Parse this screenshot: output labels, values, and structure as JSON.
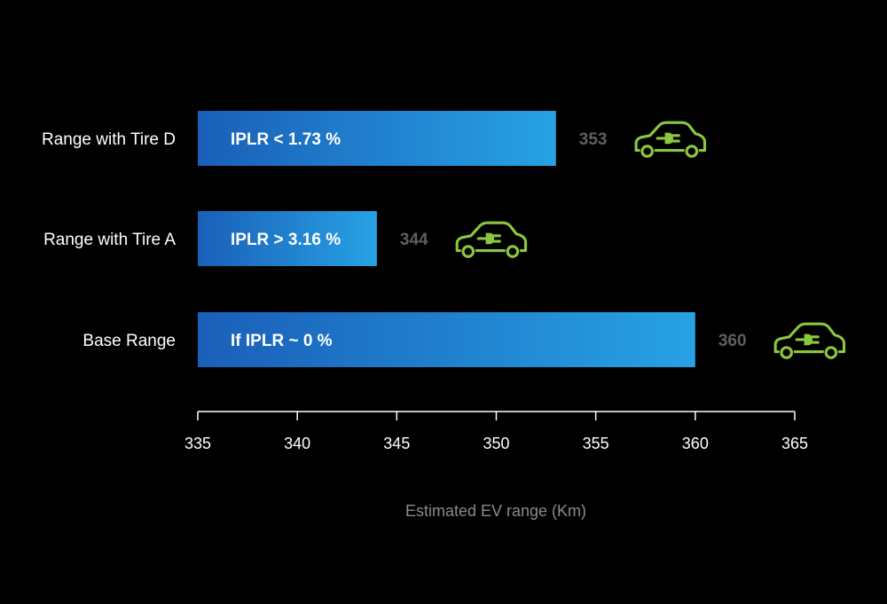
{
  "chart_data": {
    "type": "bar",
    "orientation": "horizontal",
    "categories": [
      "Range with Tire D",
      "Range with Tire A",
      "Base Range"
    ],
    "values": [
      353,
      344,
      360
    ],
    "bar_labels": [
      "IPLR < 1.73 %",
      "IPLR > 3.16 %",
      "If IPLR ~ 0 %"
    ],
    "value_labels": [
      "353",
      "344",
      "360"
    ],
    "xlabel": "Estimated EV range (Km)",
    "xlim": [
      335,
      365
    ],
    "xticks": [
      335,
      340,
      345,
      350,
      355,
      360,
      365
    ],
    "xtick_labels": [
      "335",
      "340",
      "345",
      "350",
      "355",
      "360",
      "365"
    ],
    "grid": false,
    "colors": {
      "background": "#000000",
      "bar_gradient_start": "#1a5fb8",
      "bar_gradient_end": "#27a2e4",
      "axis": "#ffffff",
      "value_text": "#5f5f5f",
      "axis_title": "#8a8a8a",
      "icon": "#8cc63f"
    },
    "icon": "electric-car-icon"
  }
}
